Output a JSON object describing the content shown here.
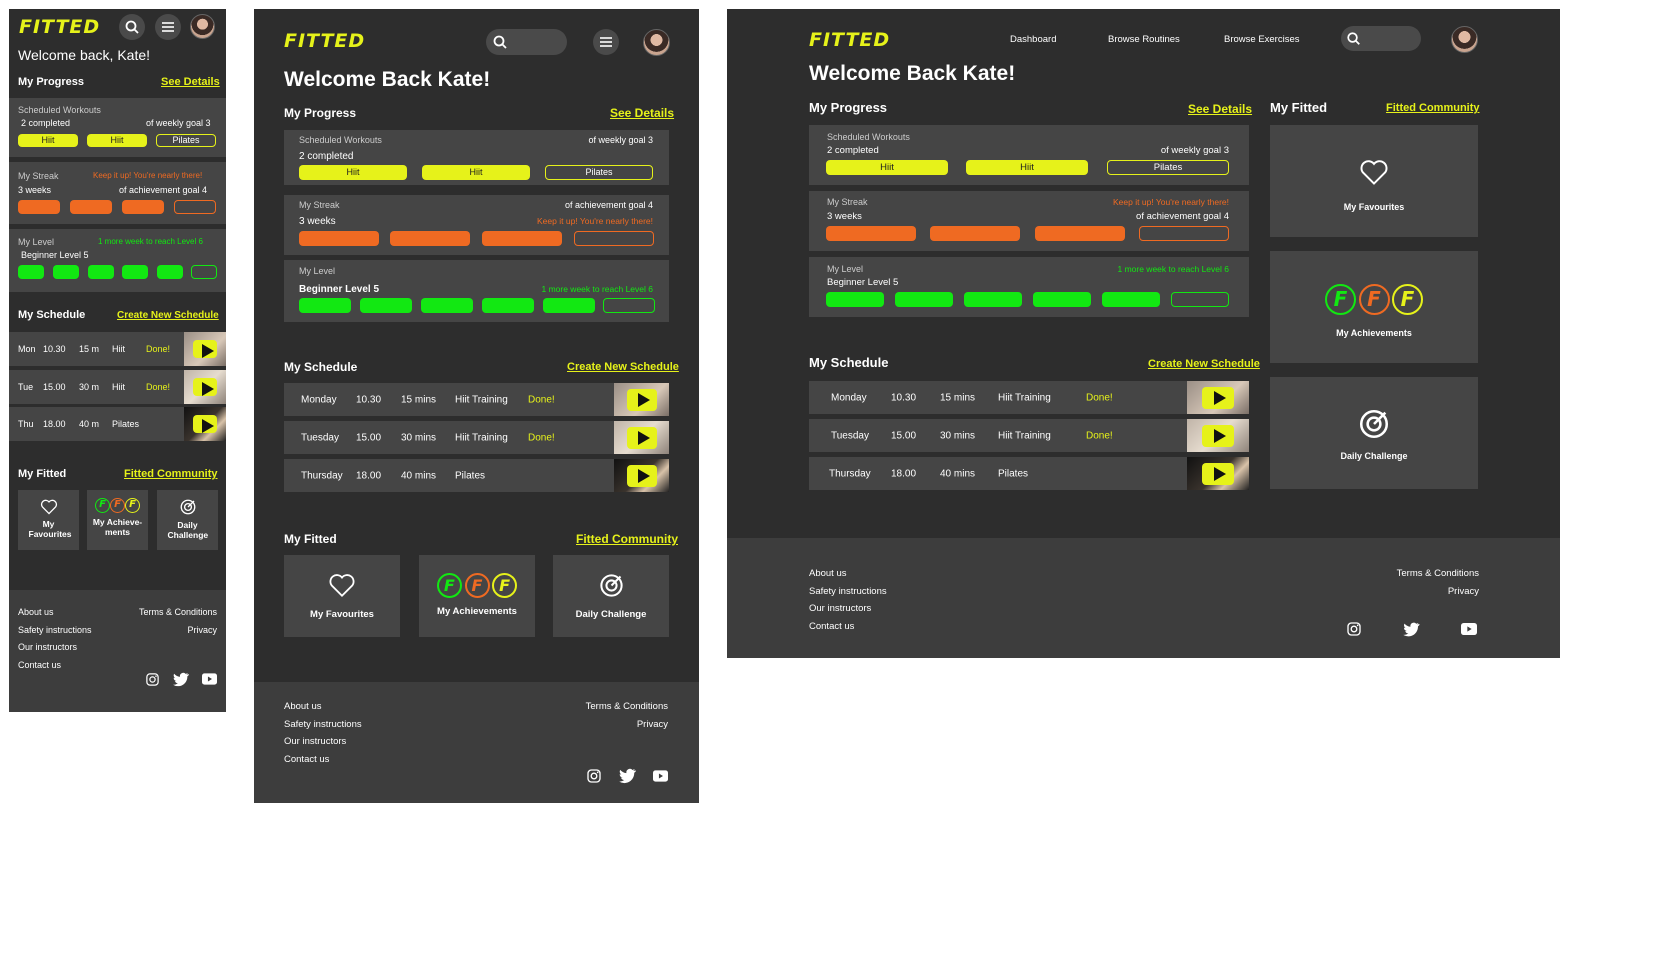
{
  "brand": "FITTED",
  "mobile": {
    "welcome": "Welcome back, Kate!",
    "workout_completed": "2 completed",
    "streak_weeks": "3 weeks",
    "level_msg": "1 more week to reach Level 6",
    "schedule": [
      {
        "day": "Mon",
        "time": "10.30",
        "duration": "15 m",
        "type": "Hiit",
        "status": "Done!"
      },
      {
        "day": "Tue",
        "time": "15.00",
        "duration": "30 m",
        "type": "Hiit",
        "status": "Done!"
      },
      {
        "day": "Thu",
        "time": "18.00",
        "duration": "40 m",
        "type": "Pilates",
        "status": ""
      }
    ],
    "tiles": {
      "favourites": "My Favourites",
      "achievements": "My Achieve-ments",
      "challenge": "Daily Challenge"
    }
  },
  "welcome_desktop": "Welcome Back Kate!",
  "progress": {
    "title": "My Progress",
    "see_details": "See Details",
    "workouts": {
      "label": "Scheduled Workouts",
      "completed": "2 completed",
      "goal": "of weekly goal 3",
      "items": [
        "Hiit",
        "Hiit",
        "Pilates"
      ]
    },
    "streak": {
      "label": "My Streak",
      "value": "3 weeks",
      "goal": "of achievement goal 4",
      "message": "Keep it up! You're nearly there!"
    },
    "level": {
      "label": "My Level",
      "value": "Beginner Level 5",
      "message": "1 more week to reach Level 6"
    }
  },
  "schedule": {
    "title": "My Schedule",
    "create": "Create New Schedule",
    "rows": [
      {
        "day": "Monday",
        "time": "10.30",
        "duration": "15 mins",
        "type": "Hiit Training",
        "status": "Done!"
      },
      {
        "day": "Tuesday",
        "time": "15.00",
        "duration": "30 mins",
        "type": "Hiit Training",
        "status": "Done!"
      },
      {
        "day": "Thursday",
        "time": "18.00",
        "duration": "40 mins",
        "type": "Pilates",
        "status": ""
      }
    ]
  },
  "fitted": {
    "title": "My Fitted",
    "community": "Fitted Community",
    "favourites": "My Favourites",
    "achievements": "My Achievements",
    "challenge": "Daily Challenge",
    "badge_letter": "F"
  },
  "nav": {
    "dashboard": "Dashboard",
    "routines": "Browse Routines",
    "exercises": "Browse Exercises"
  },
  "footer": {
    "about": "About us",
    "safety": "Safety instructions",
    "instructors": "Our instructors",
    "contact": "Contact us",
    "terms": "Terms & Conditions",
    "privacy": "Privacy"
  },
  "colors": {
    "yellow": "#e6f21a",
    "orange": "#ef6a22",
    "green": "#12e812",
    "bg": "#2d2d2d",
    "card": "#454545"
  }
}
